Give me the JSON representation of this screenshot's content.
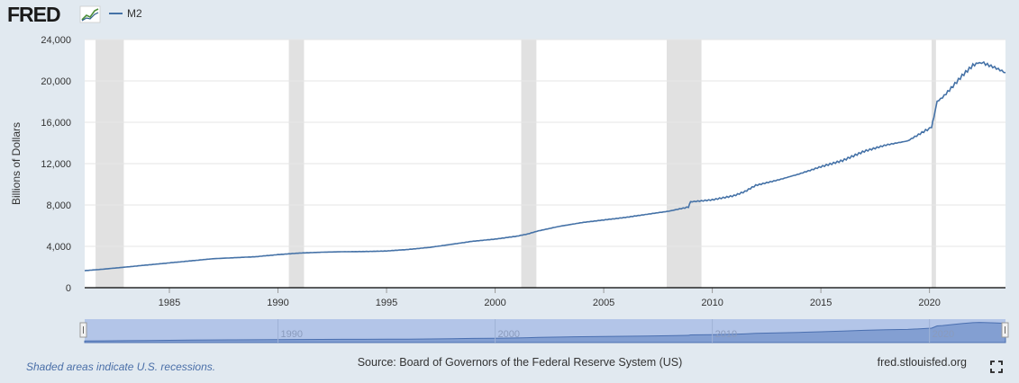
{
  "header": {
    "logo_text": "FRED",
    "logo_icon": "fred-chart-logo-icon",
    "legend_series": "M2"
  },
  "footer": {
    "recession_note": "Shaded areas indicate U.S. recessions.",
    "source": "Source: Board of Governors of the Federal Reserve System (US)",
    "site": "fred.stlouisfed.org",
    "fullscreen_icon": "fullscreen-icon"
  },
  "navigator": {
    "tick_labels": [
      "1990",
      "2000",
      "2010",
      "2020"
    ]
  },
  "colors": {
    "line": "#4572a7",
    "recession": "#e1e1e1",
    "background": "#e1e9f0",
    "plot_bg": "#ffffff",
    "navigator_fill": "#b3c5e8",
    "logo": "#1a1a1a"
  },
  "chart_data": {
    "type": "line",
    "title": "",
    "xlabel": "",
    "ylabel": "Billions of Dollars",
    "x_range": [
      1981.1,
      2023.5
    ],
    "ylim": [
      0,
      24000
    ],
    "y_ticks": [
      0,
      4000,
      8000,
      12000,
      16000,
      20000,
      24000
    ],
    "y_tick_labels": [
      "0",
      "4,000",
      "8,000",
      "12,000",
      "16,000",
      "20,000",
      "24,000"
    ],
    "x_ticks": [
      1985,
      1990,
      1995,
      2000,
      2005,
      2010,
      2015,
      2020
    ],
    "x_tick_labels": [
      "1985",
      "1990",
      "1995",
      "2000",
      "2005",
      "2010",
      "2015",
      "2020"
    ],
    "grid": true,
    "legend": "top-left",
    "recessions": [
      [
        1981.6,
        1982.9
      ],
      [
        1990.5,
        1991.2
      ],
      [
        2001.2,
        2001.9
      ],
      [
        2007.9,
        2009.5
      ],
      [
        2020.1,
        2020.3
      ]
    ],
    "series": [
      {
        "name": "M2",
        "x": [
          1981.1,
          1982,
          1983,
          1984,
          1985,
          1986,
          1987,
          1988,
          1989,
          1990,
          1991,
          1992,
          1993,
          1994,
          1995,
          1996,
          1997,
          1998,
          1999,
          2000,
          2001,
          2001.5,
          2002,
          2003,
          2004,
          2005,
          2006,
          2007,
          2008,
          2008.9,
          2009,
          2010,
          2011,
          2011.5,
          2012,
          2013,
          2014,
          2015,
          2016,
          2017,
          2018,
          2019,
          2019.9,
          2020.1,
          2020.2,
          2020.35,
          2020.6,
          2021,
          2021.5,
          2022.0,
          2022.3,
          2022.5,
          2023,
          2023.5
        ],
        "y": [
          1650,
          1800,
          2000,
          2200,
          2400,
          2600,
          2800,
          2900,
          3000,
          3200,
          3350,
          3430,
          3480,
          3500,
          3550,
          3700,
          3900,
          4200,
          4500,
          4700,
          4980,
          5200,
          5500,
          5950,
          6300,
          6550,
          6800,
          7100,
          7400,
          7800,
          8300,
          8500,
          8900,
          9300,
          9900,
          10400,
          11000,
          11700,
          12300,
          13200,
          13800,
          14200,
          15300,
          15500,
          16500,
          18000,
          18400,
          19300,
          20500,
          21500,
          21800,
          21700,
          21300,
          20800
        ]
      }
    ]
  }
}
